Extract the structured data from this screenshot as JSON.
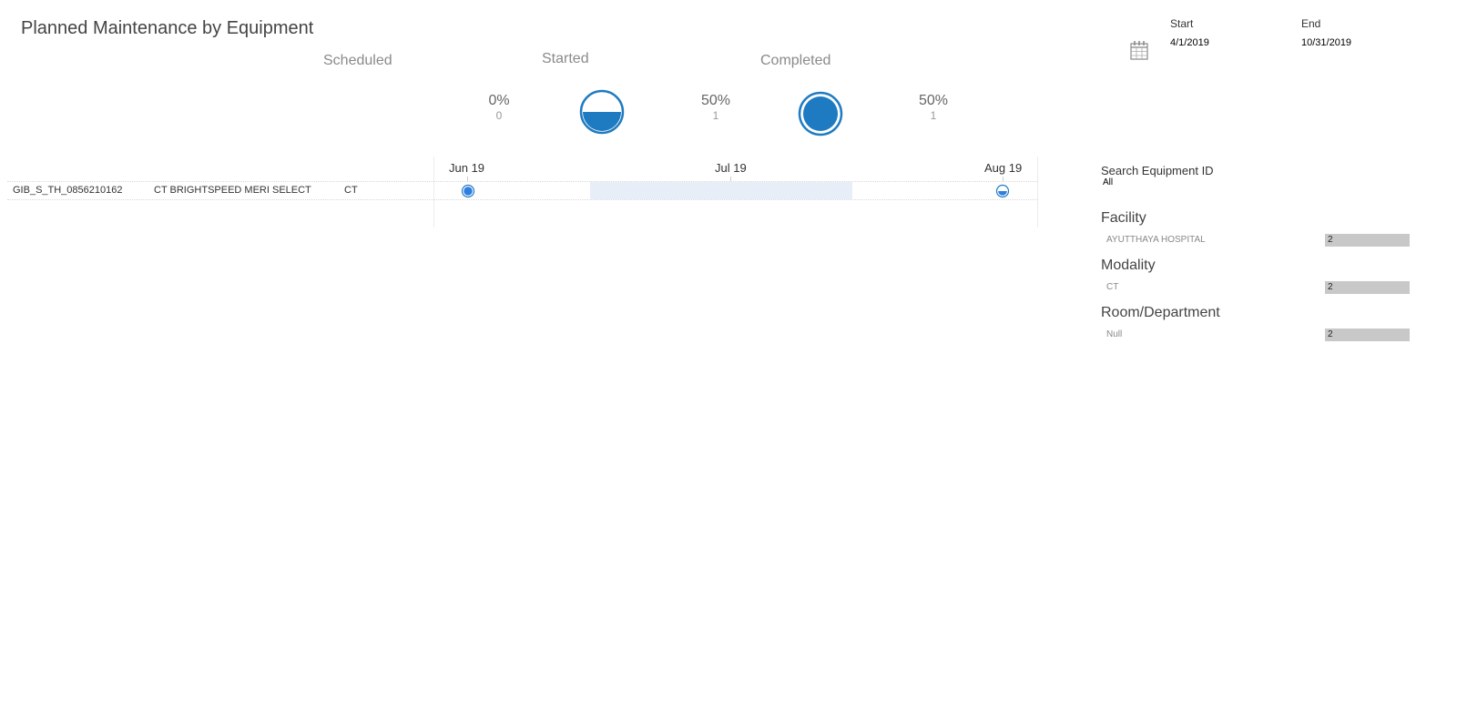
{
  "header": {
    "title": "Planned Maintenance by Equipment"
  },
  "kpis": {
    "scheduled": {
      "label": "Scheduled",
      "pct": "0%",
      "count": "0"
    },
    "started": {
      "label": "Started",
      "pct": "50%",
      "count": "1"
    },
    "completed": {
      "label": "Completed",
      "pct": "50%",
      "count": "1"
    }
  },
  "date_range": {
    "start_label": "Start",
    "start_value": "4/1/2019",
    "end_label": "End",
    "end_value": "10/31/2019",
    "icon": "calendar-icon"
  },
  "timeline": {
    "months": [
      "Jun 19",
      "Jul 19",
      "Aug 19"
    ],
    "rows": [
      {
        "equipment_id": "GIB_S_TH_0856210162",
        "description": "CT BRIGHTSPEED MERI SELECT",
        "modality": "CT"
      }
    ]
  },
  "filters": {
    "search": {
      "label": "Search Equipment ID",
      "value": "All"
    },
    "facility": {
      "heading": "Facility",
      "items": [
        {
          "name": "AYUTTHAYA HOSPITAL",
          "count": "2"
        }
      ]
    },
    "modality": {
      "heading": "Modality",
      "items": [
        {
          "name": "CT",
          "count": "2"
        }
      ]
    },
    "room": {
      "heading": "Room/Department",
      "items": [
        {
          "name": "Null",
          "count": "2"
        }
      ]
    }
  },
  "colors": {
    "accent": "#1f7bc1",
    "highlight": "#e8eef7",
    "bar": "#c8c8c8"
  }
}
